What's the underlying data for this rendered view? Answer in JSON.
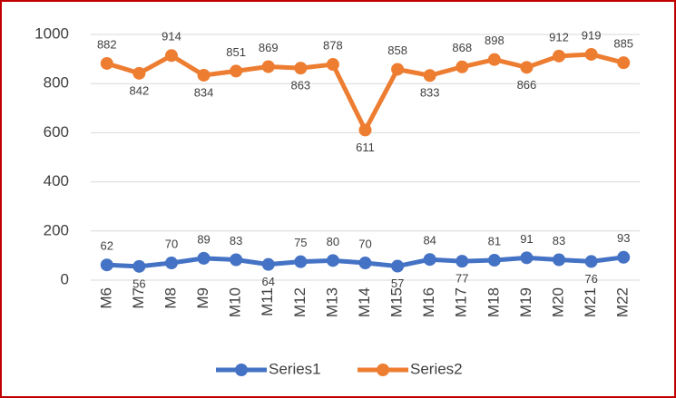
{
  "chart_data": {
    "type": "line",
    "categories": [
      "M6",
      "M7",
      "M8",
      "M9",
      "M10",
      "M11",
      "M12",
      "M13",
      "M14",
      "M15",
      "M16",
      "M17",
      "M18",
      "M19",
      "M20",
      "M21",
      "M22"
    ],
    "series": [
      {
        "name": "Series1",
        "color": "#4472c4",
        "values": [
          62,
          56,
          70,
          89,
          83,
          64,
          75,
          80,
          70,
          57,
          84,
          77,
          81,
          91,
          83,
          76,
          93
        ]
      },
      {
        "name": "Series2",
        "color": "#ed7d31",
        "values": [
          882,
          842,
          914,
          834,
          851,
          869,
          863,
          878,
          611,
          858,
          833,
          868,
          898,
          866,
          912,
          919,
          885
        ]
      }
    ],
    "ylim": [
      0,
      1000
    ],
    "yticks": [
      0,
      200,
      400,
      600,
      800,
      1000
    ],
    "grid": true,
    "legend": "bottom"
  }
}
